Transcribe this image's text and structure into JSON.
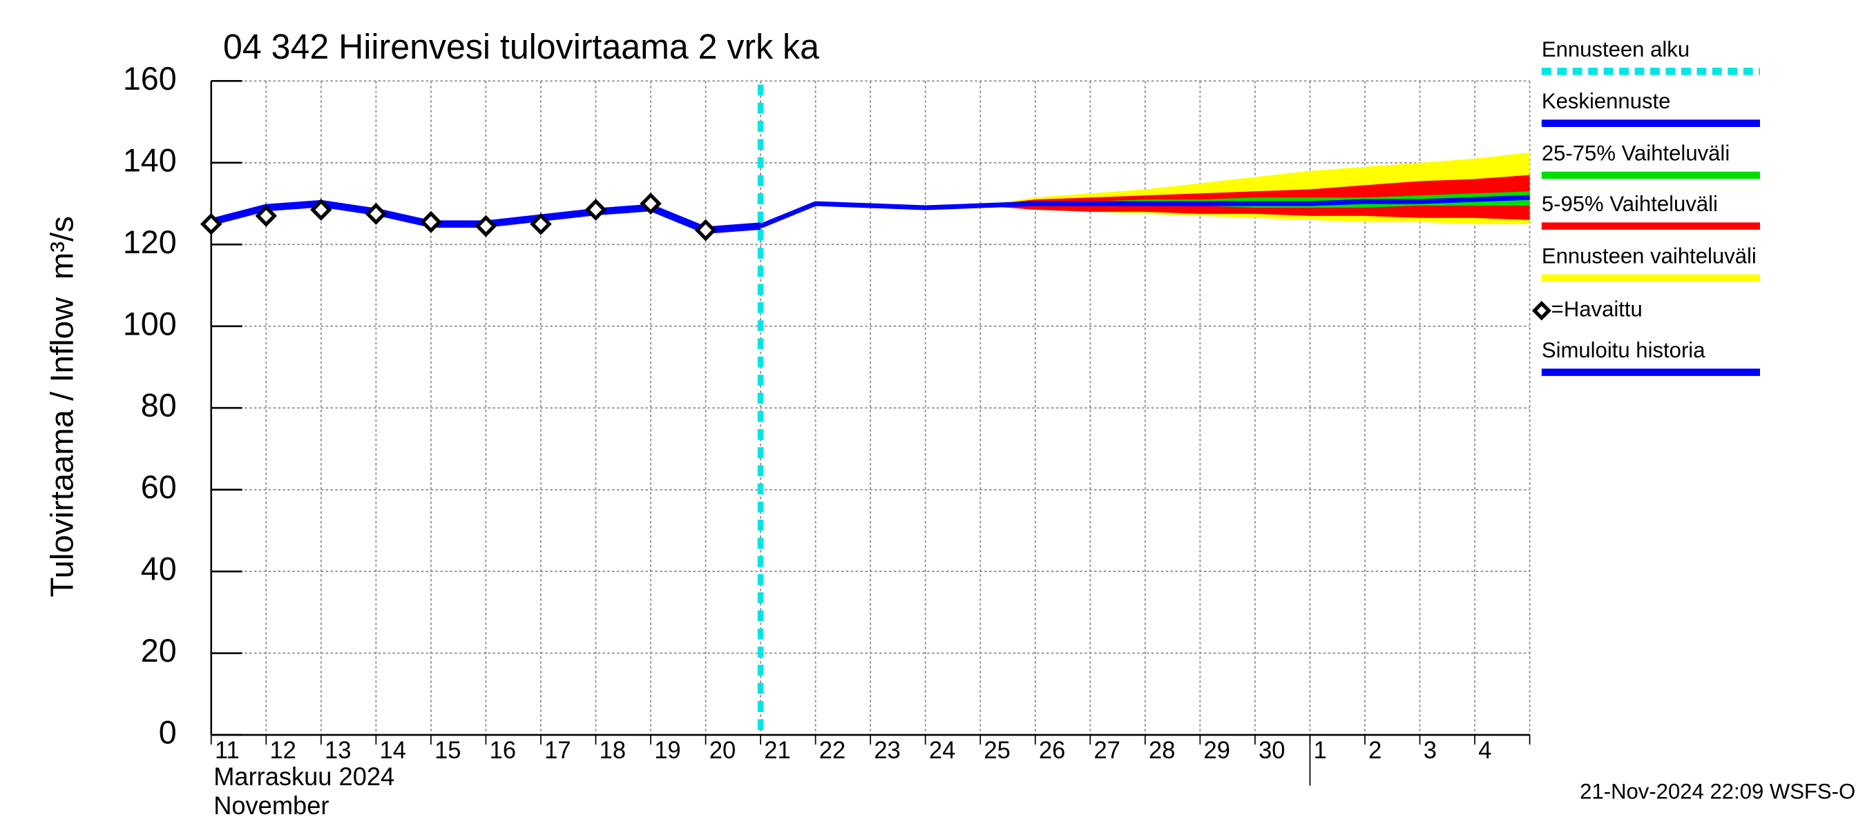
{
  "chart_data": {
    "type": "line",
    "title": "04 342 Hiirenvesi tulovirtaama 2 vrk ka",
    "y_label": "Tulovirtaama / Inflow",
    "y_unit": "m³/s",
    "month_label": "Marraskuu 2024",
    "month_label_en": "November",
    "footer": "21-Nov-2024 22:09 WSFS-O",
    "categories": [
      "11",
      "12",
      "13",
      "14",
      "15",
      "16",
      "17",
      "18",
      "19",
      "20",
      "21",
      "22",
      "23",
      "24",
      "25",
      "26",
      "27",
      "28",
      "29",
      "30",
      "1",
      "2",
      "3",
      "4",
      null
    ],
    "month_break": 20,
    "ylim": [
      0,
      160
    ],
    "yticks": [
      0,
      20,
      40,
      60,
      80,
      100,
      120,
      140,
      160
    ],
    "grid": true,
    "forecast_start": {
      "name": "Ennusteen alku",
      "color": "#00e5e5",
      "x": 10
    },
    "bands": [
      {
        "name": "Ennusteen vaihteluväli",
        "color": "#ffff00",
        "high": [
          null,
          null,
          null,
          null,
          null,
          null,
          null,
          null,
          null,
          null,
          null,
          null,
          null,
          null,
          129.5,
          131.5,
          132.5,
          133.5,
          135,
          136.5,
          138,
          139,
          140,
          141,
          142.5
        ],
        "low": [
          null,
          null,
          null,
          null,
          null,
          null,
          null,
          null,
          null,
          null,
          null,
          null,
          null,
          null,
          129.5,
          128.5,
          128,
          127.5,
          127,
          126.5,
          126,
          125.5,
          125.5,
          125,
          125
        ]
      },
      {
        "name": "5-95% Vaihteluväli",
        "color": "#ff0000",
        "high": [
          null,
          null,
          null,
          null,
          null,
          null,
          null,
          null,
          null,
          null,
          null,
          null,
          null,
          null,
          129.5,
          131,
          131.5,
          132,
          132.5,
          133,
          133.5,
          134.5,
          135.5,
          136,
          137
        ],
        "low": [
          null,
          null,
          null,
          null,
          null,
          null,
          null,
          null,
          null,
          null,
          null,
          null,
          null,
          null,
          129.5,
          128.5,
          128,
          128,
          127.5,
          127.5,
          127,
          127,
          126.5,
          126.5,
          126
        ]
      },
      {
        "name": "25-75% Vaihteluväli",
        "color": "#00dd00",
        "high": [
          null,
          null,
          null,
          null,
          null,
          null,
          null,
          null,
          null,
          null,
          null,
          null,
          null,
          null,
          129.5,
          130.5,
          130.5,
          131,
          131,
          131.5,
          131.5,
          131.5,
          132,
          132.5,
          133
        ],
        "low": [
          null,
          null,
          null,
          null,
          null,
          null,
          null,
          null,
          null,
          null,
          null,
          null,
          null,
          null,
          129.5,
          129.5,
          129.5,
          129.5,
          129.5,
          129,
          129,
          129,
          129.5,
          129.5,
          129.5
        ]
      }
    ],
    "series": [
      {
        "name": "Keskiennuste",
        "color": "#0000ff",
        "values": [
          null,
          null,
          null,
          null,
          null,
          null,
          null,
          null,
          null,
          null,
          124.5,
          130,
          129.5,
          129,
          129.5,
          130,
          130,
          130,
          130,
          130,
          130,
          130.5,
          130.5,
          131,
          131.5
        ]
      },
      {
        "name": "=Havaittu",
        "color": "#000000",
        "marker": "diamond",
        "values": [
          125,
          127,
          128.5,
          127.5,
          125.5,
          124.5,
          125,
          128.5,
          130,
          123.5,
          null,
          null,
          null,
          null,
          null,
          null,
          null,
          null,
          null,
          null,
          null,
          null,
          null,
          null,
          null
        ]
      },
      {
        "name": "Simuloitu historia",
        "color": "#0000ff",
        "values": [
          125.5,
          129,
          130,
          128,
          125,
          125,
          126.5,
          128,
          129,
          123.5,
          124.5,
          null,
          null,
          null,
          null,
          null,
          null,
          null,
          null,
          null,
          null,
          null,
          null,
          null,
          null
        ]
      }
    ]
  }
}
